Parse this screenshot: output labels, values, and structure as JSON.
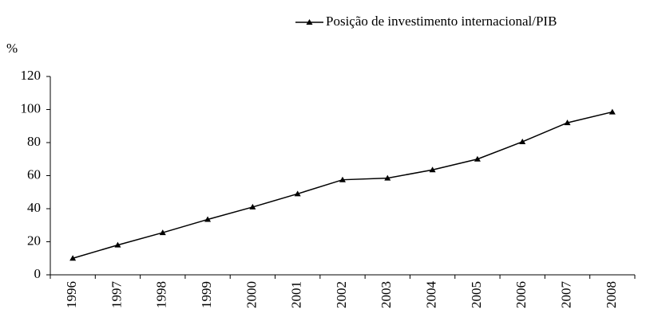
{
  "chart_data": {
    "type": "line",
    "y_label": "%",
    "categories": [
      "1996",
      "1997",
      "1998",
      "1999",
      "2000",
      "2001",
      "2002",
      "2003",
      "2004",
      "2005",
      "2006",
      "2007",
      "2008"
    ],
    "series": [
      {
        "name": "Posição de investimento internacional/PIB",
        "color": "#000000",
        "marker": "triangle",
        "values": [
          10,
          18,
          25.5,
          33.5,
          41,
          49,
          57.5,
          58.5,
          63.5,
          70,
          80.5,
          92,
          98.5
        ]
      }
    ],
    "ylim": [
      0,
      120
    ],
    "yticks": [
      0,
      20,
      40,
      60,
      80,
      100,
      120
    ],
    "grid": false,
    "legend": "top-right"
  }
}
